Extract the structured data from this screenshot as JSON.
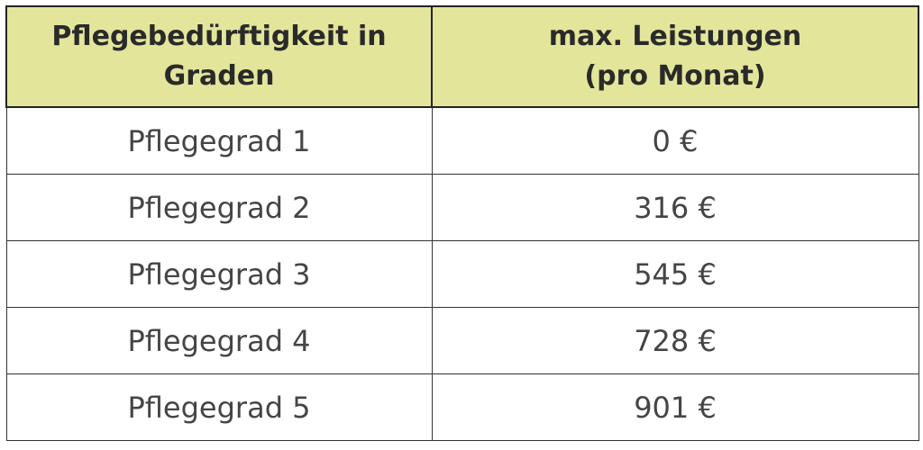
{
  "table": {
    "header": [
      [
        "Pflegebedürftigkeit in",
        "Graden"
      ],
      [
        "max. Leistungen",
        "(pro Monat)"
      ]
    ],
    "rows": [
      [
        "Pflegegrad 1",
        "0 €"
      ],
      [
        "Pflegegrad 2",
        "316 €"
      ],
      [
        "Pflegegrad 3",
        "545 €"
      ],
      [
        "Pflegegrad 4",
        "728 €"
      ],
      [
        "Pflegegrad 5",
        "901 €"
      ]
    ]
  }
}
